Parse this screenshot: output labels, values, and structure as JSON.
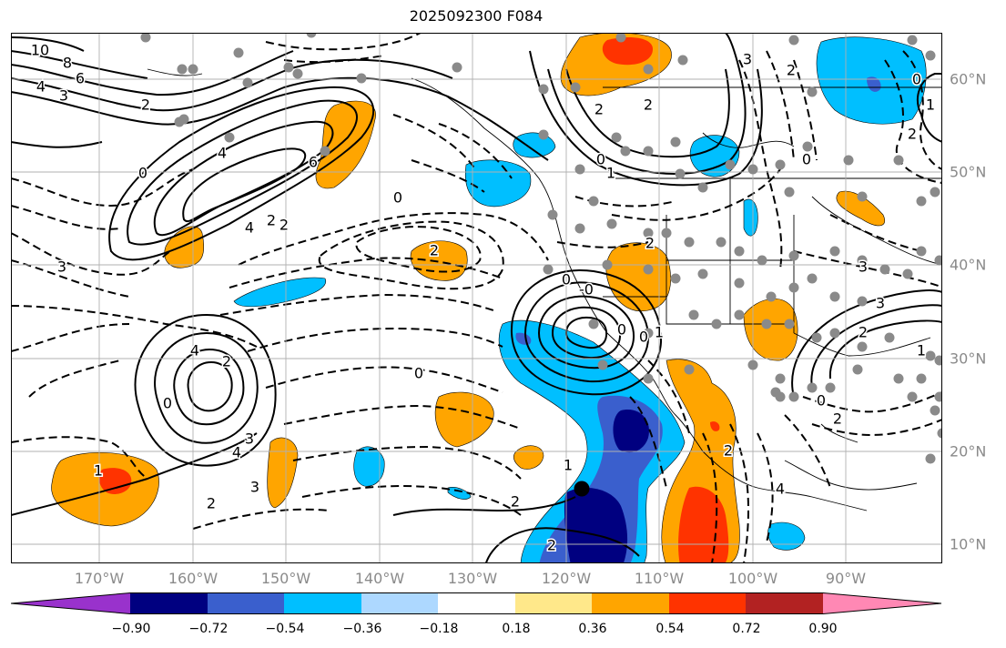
{
  "title": "2025092300 F084",
  "map": {
    "lon_labels": [
      "170°W",
      "160°W",
      "150°W",
      "140°W",
      "130°W",
      "120°W",
      "110°W",
      "100°W",
      "90°W"
    ],
    "lat_labels": [
      "60°N",
      "50°N",
      "40°N",
      "30°N",
      "20°N",
      "10°N"
    ],
    "label_color": "#8a8a8a",
    "grid_color": "#b0b0b0",
    "contour_labels": [
      "10",
      "8",
      "6",
      "4",
      "3",
      "2",
      "0",
      "4",
      "6",
      "4",
      "2",
      "2",
      "0",
      "2",
      "3",
      "4",
      "2",
      "0",
      "3",
      "4",
      "3",
      "2",
      "1",
      "0",
      "1",
      "2",
      "2",
      "0",
      "-0",
      "0",
      "1",
      "0",
      "2",
      "0",
      "1",
      "2",
      "2",
      "3",
      "2",
      "0",
      "0",
      "2",
      "3",
      "3",
      "2",
      "1",
      "0",
      "2",
      "2",
      "4",
      "1"
    ],
    "marker": {
      "type": "storm-center",
      "color": "#000000"
    },
    "station_dot_color": "#8a8a8a"
  },
  "colorbar": {
    "tick_labels": [
      "−0.90",
      "−0.72",
      "−0.54",
      "−0.36",
      "−0.18",
      "0.18",
      "0.36",
      "0.54",
      "0.72",
      "0.90"
    ],
    "colors": [
      "#9932cc",
      "#000080",
      "#3a5fcd",
      "#00bfff",
      "#add8ff",
      "#ffffff",
      "#ffe88a",
      "#ffa500",
      "#ff3300",
      "#b22222",
      "#ff88b4"
    ]
  }
}
